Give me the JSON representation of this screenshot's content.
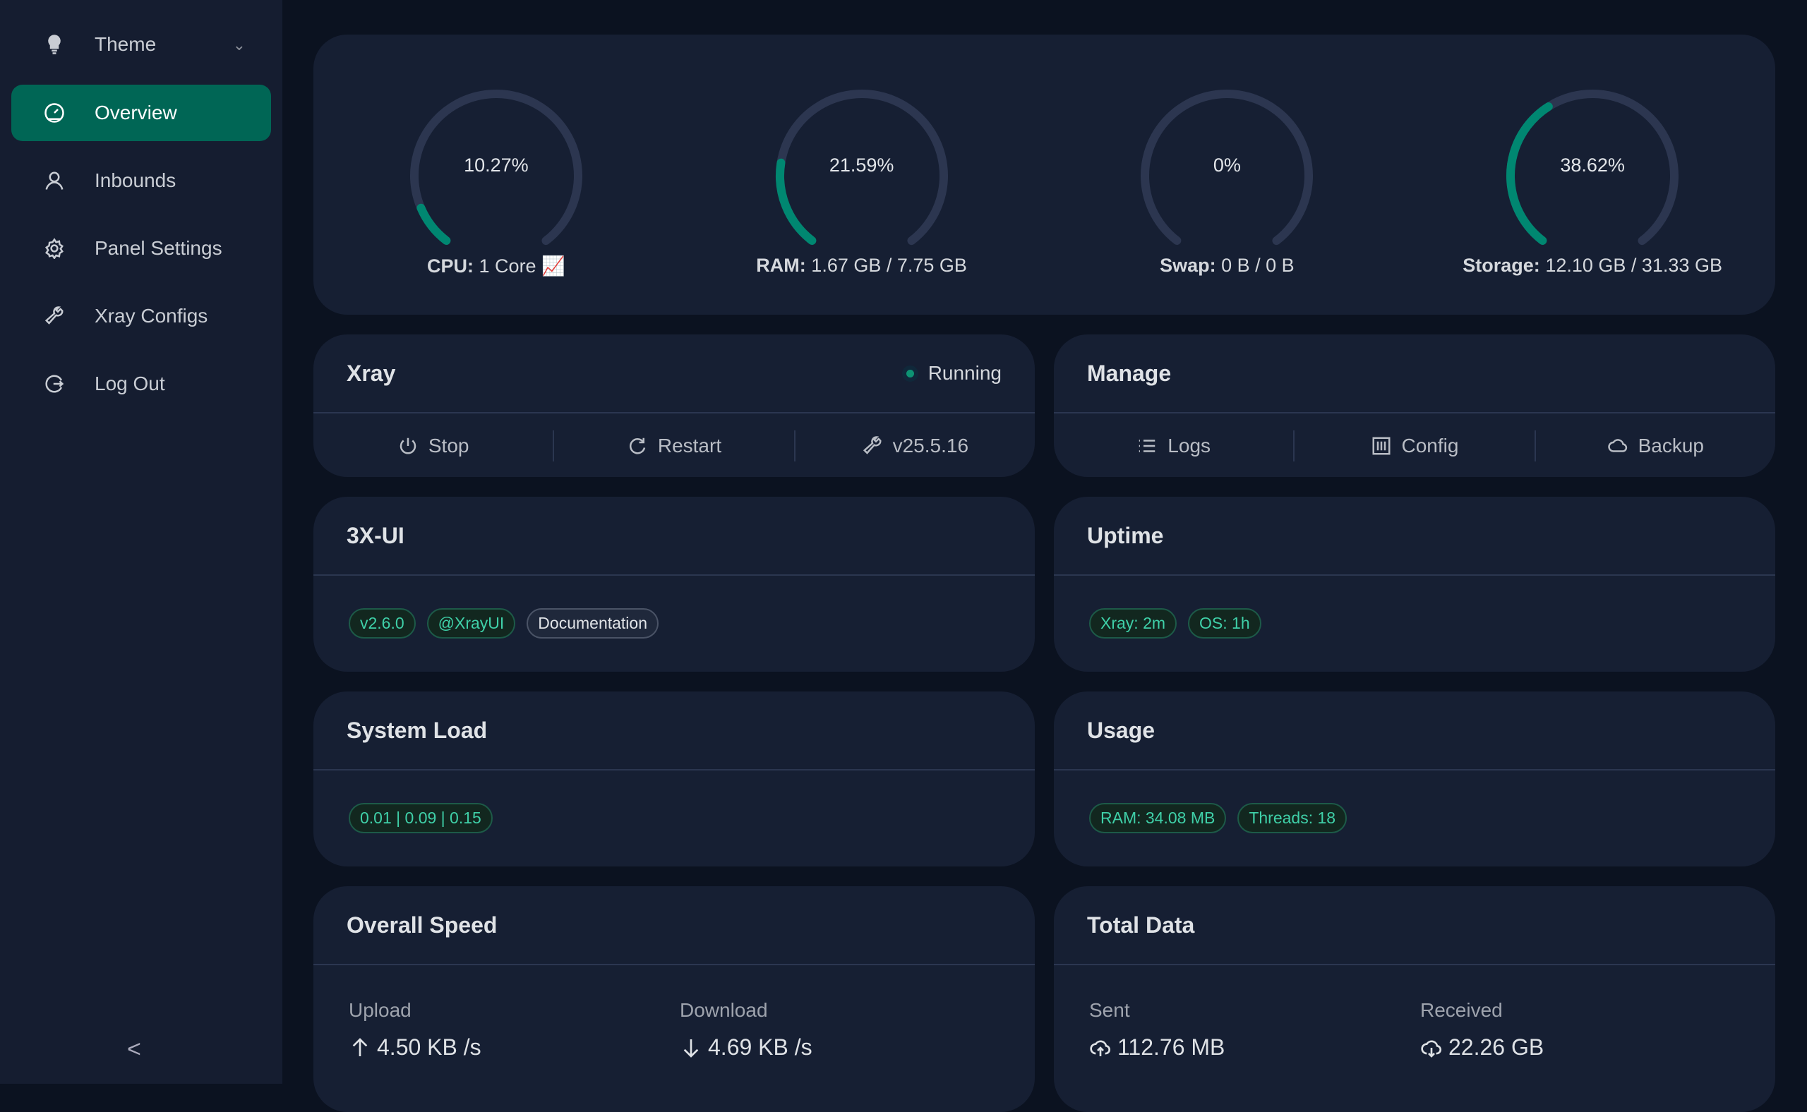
{
  "sidebar": {
    "theme": "Theme",
    "items": [
      {
        "label": "Overview",
        "icon": "dashboard-icon",
        "active": true
      },
      {
        "label": "Inbounds",
        "icon": "user-icon"
      },
      {
        "label": "Panel Settings",
        "icon": "gear-icon"
      },
      {
        "label": "Xray Configs",
        "icon": "wrench-icon"
      },
      {
        "label": "Log Out",
        "icon": "logout-icon"
      }
    ],
    "collapse": "<"
  },
  "accent": "#008771",
  "gauges": [
    {
      "pct": 10.27,
      "text": "10.27%",
      "label": "CPU:",
      "value": "1 Core"
    },
    {
      "pct": 21.59,
      "text": "21.59%",
      "label": "RAM:",
      "value": "1.67 GB / 7.75 GB"
    },
    {
      "pct": 0,
      "text": "0%",
      "label": "Swap:",
      "value": "0 B / 0 B"
    },
    {
      "pct": 38.62,
      "text": "38.62%",
      "label": "Storage:",
      "value": "12.10 GB / 31.33 GB"
    }
  ],
  "xray": {
    "title": "Xray",
    "status": "Running",
    "stop": "Stop",
    "restart": "Restart",
    "version": "v25.5.16"
  },
  "manage": {
    "title": "Manage",
    "logs": "Logs",
    "config": "Config",
    "backup": "Backup"
  },
  "app": {
    "title": "3X-UI",
    "version": "v2.6.0",
    "channel": "@XrayUI",
    "docs": "Documentation"
  },
  "uptime": {
    "title": "Uptime",
    "xray": "Xray: 2m",
    "os": "OS: 1h"
  },
  "load": {
    "title": "System Load",
    "value": "0.01 | 0.09 | 0.15"
  },
  "usage": {
    "title": "Usage",
    "ram": "RAM: 34.08 MB",
    "threads": "Threads: 18"
  },
  "speed": {
    "title": "Overall Speed",
    "upload_label": "Upload",
    "upload": "4.50 KB /s",
    "download_label": "Download",
    "download": "4.69 KB /s"
  },
  "total": {
    "title": "Total Data",
    "sent_label": "Sent",
    "sent": "112.76 MB",
    "received_label": "Received",
    "received": "22.26 GB"
  }
}
